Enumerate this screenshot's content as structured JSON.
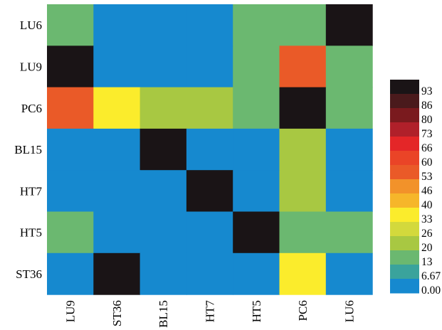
{
  "chart_data": {
    "type": "heatmap",
    "title": "",
    "xlabel": "",
    "ylabel": "",
    "x_categories": [
      "LU9",
      "ST36",
      "BL15",
      "HT7",
      "HT5",
      "PC6",
      "LU6"
    ],
    "y_categories": [
      "LU6",
      "LU9",
      "PC6",
      "BL15",
      "HT7",
      "HT5",
      "ST36"
    ],
    "values": [
      [
        13,
        0,
        0,
        0,
        13,
        13,
        93
      ],
      [
        93,
        0,
        0,
        0,
        13,
        53,
        13
      ],
      [
        53,
        33,
        20,
        20,
        13,
        93,
        13
      ],
      [
        0,
        0,
        93,
        0,
        0,
        20,
        0
      ],
      [
        0,
        0,
        0,
        93,
        0,
        20,
        0
      ],
      [
        13,
        0,
        0,
        0,
        93,
        13,
        13
      ],
      [
        0,
        93,
        0,
        0,
        0,
        33,
        0
      ]
    ],
    "colorbar": {
      "ticks": [
        "93",
        "86",
        "80",
        "73",
        "66",
        "60",
        "53",
        "46",
        "40",
        "33",
        "26",
        "20",
        "13",
        "6.67",
        "0.00"
      ],
      "tick_values": [
        93,
        86,
        80,
        73,
        66,
        60,
        53,
        46,
        40,
        33,
        26,
        20,
        13,
        6.67,
        0
      ],
      "colors": [
        "#1a1416",
        "#4a1a1c",
        "#7a1a1e",
        "#b0202a",
        "#e42628",
        "#ea4427",
        "#ea5a28",
        "#f2922a",
        "#f6b62a",
        "#fbec2c",
        "#d3d93c",
        "#a8c842",
        "#6bb870",
        "#3aa39c",
        "#1689cf"
      ]
    }
  }
}
